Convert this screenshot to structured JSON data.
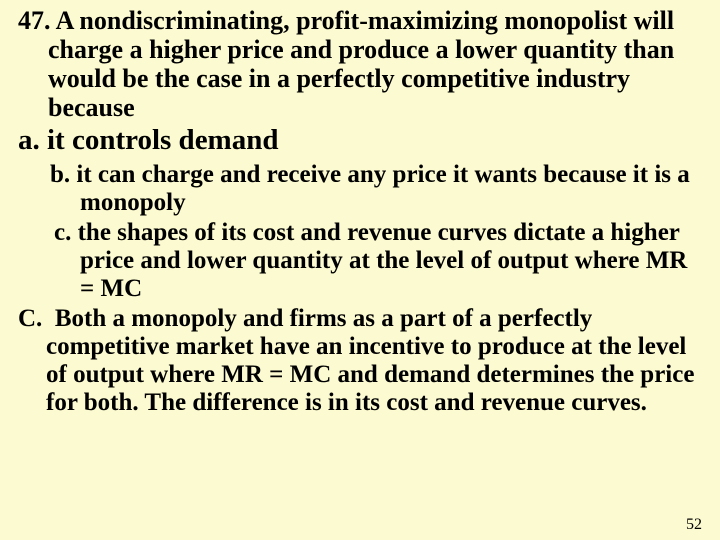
{
  "background_color": "#fcfad0",
  "text_color": "#000000",
  "question": {
    "number": "47.",
    "text": "A nondiscriminating, profit-maximizing monopolist will charge a higher price and produce a lower quantity than would be the case in a perfectly competitive industry because"
  },
  "options": {
    "a": {
      "label": "a.",
      "text": "it controls demand"
    },
    "b": {
      "label": "b.",
      "text": "it can charge and receive any price it wants because it is a monopoly"
    },
    "c": {
      "label": "c.",
      "text": "the shapes of its cost and revenue curves dictate a higher price and lower quantity at the level of output where MR = MC"
    }
  },
  "answer": {
    "label": "C.",
    "text": "Both a monopoly and firms as a part of a perfectly competitive market have an incentive to produce at the level of output where MR = MC and demand determines the price for both. The difference is in its cost and revenue curves."
  },
  "page_number": "52"
}
